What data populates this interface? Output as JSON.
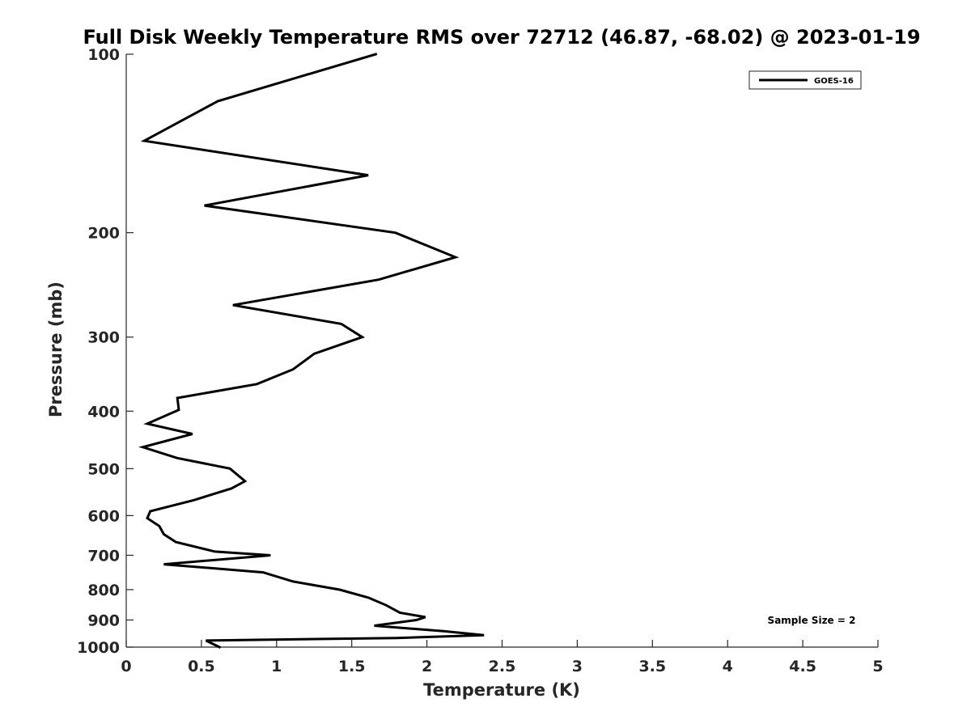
{
  "chart_data": {
    "type": "line",
    "title": "Full Disk Weekly Temperature RMS over 72712 (46.87, -68.02) @ 2023-01-19",
    "xlabel": "Temperature (K)",
    "ylabel": "Pressure (mb)",
    "xlim": [
      0,
      5
    ],
    "ylim": [
      1000,
      100
    ],
    "y_scale": "log",
    "y_reversed": true,
    "grid": false,
    "legend_position": "top-right",
    "xticks": [
      "0",
      "0.5",
      "1",
      "1.5",
      "2",
      "2.5",
      "3",
      "3.5",
      "4",
      "4.5",
      "5"
    ],
    "yticks": [
      "100",
      "200",
      "300",
      "400",
      "500",
      "600",
      "700",
      "800",
      "900",
      "1000"
    ],
    "annotation": "Sample Size = 2",
    "series": [
      {
        "name": "GOES-16",
        "color": "#000000",
        "points": [
          [
            1.66,
            100
          ],
          [
            0.61,
            120
          ],
          [
            0.12,
            140
          ],
          [
            1.61,
            160
          ],
          [
            0.52,
            180
          ],
          [
            1.79,
            200
          ],
          [
            2.19,
            220
          ],
          [
            1.68,
            240
          ],
          [
            0.71,
            265
          ],
          [
            1.43,
            285
          ],
          [
            1.57,
            300
          ],
          [
            1.25,
            320
          ],
          [
            1.11,
            340
          ],
          [
            0.87,
            360
          ],
          [
            0.34,
            380
          ],
          [
            0.35,
            398
          ],
          [
            0.14,
            420
          ],
          [
            0.44,
            437
          ],
          [
            0.11,
            460
          ],
          [
            0.34,
            480
          ],
          [
            0.69,
            500
          ],
          [
            0.79,
            525
          ],
          [
            0.7,
            540
          ],
          [
            0.45,
            565
          ],
          [
            0.16,
            590
          ],
          [
            0.14,
            606
          ],
          [
            0.22,
            625
          ],
          [
            0.25,
            645
          ],
          [
            0.33,
            665
          ],
          [
            0.59,
            690
          ],
          [
            0.96,
            700
          ],
          [
            0.25,
            725
          ],
          [
            0.91,
            748
          ],
          [
            1.11,
            775
          ],
          [
            1.42,
            800
          ],
          [
            1.61,
            825
          ],
          [
            1.73,
            850
          ],
          [
            1.82,
            875
          ],
          [
            1.99,
            890
          ],
          [
            1.93,
            900
          ],
          [
            1.65,
            920
          ],
          [
            2.11,
            940
          ],
          [
            2.38,
            955
          ],
          [
            1.8,
            965
          ],
          [
            0.53,
            975
          ],
          [
            0.62,
            1000
          ]
        ]
      }
    ]
  }
}
